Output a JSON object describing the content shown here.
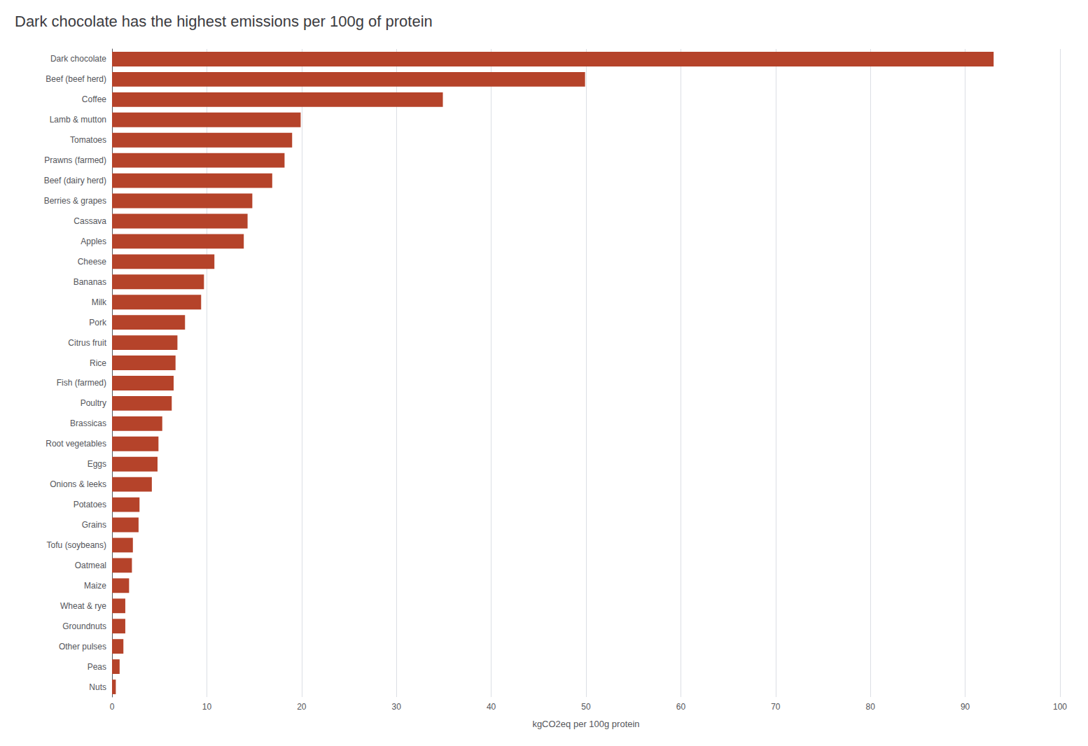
{
  "chart_data": {
    "type": "bar",
    "orientation": "horizontal",
    "title": "Dark chocolate has the highest emissions per 100g of protein",
    "xlabel": "kgCO2eq per 100g protein",
    "categories": [
      "Dark chocolate",
      "Beef (beef herd)",
      "Coffee",
      "Lamb & mutton",
      "Tomatoes",
      "Prawns (farmed)",
      "Beef (dairy herd)",
      "Berries & grapes",
      "Cassava",
      "Apples",
      "Cheese",
      "Bananas",
      "Milk",
      "Pork",
      "Citrus fruit",
      "Rice",
      "Fish (farmed)",
      "Poultry",
      "Brassicas",
      "Root vegetables",
      "Eggs",
      "Onions & leeks",
      "Potatoes",
      "Grains",
      "Tofu (soybeans)",
      "Oatmeal",
      "Maize",
      "Wheat & rye",
      "Groundnuts",
      "Other pulses",
      "Peas",
      "Nuts"
    ],
    "values": [
      93.0,
      49.9,
      34.9,
      19.9,
      19.0,
      18.2,
      16.9,
      14.8,
      14.3,
      13.9,
      10.8,
      9.7,
      9.4,
      7.7,
      6.9,
      6.7,
      6.5,
      6.3,
      5.3,
      4.9,
      4.8,
      4.2,
      2.9,
      2.8,
      2.2,
      2.1,
      1.8,
      1.4,
      1.4,
      1.2,
      0.8,
      0.4
    ],
    "color": "#b5432a",
    "xlim": [
      0,
      100
    ],
    "xticks": [
      0,
      10,
      20,
      30,
      40,
      50,
      60,
      70,
      80,
      90,
      100
    ],
    "grid": true
  }
}
